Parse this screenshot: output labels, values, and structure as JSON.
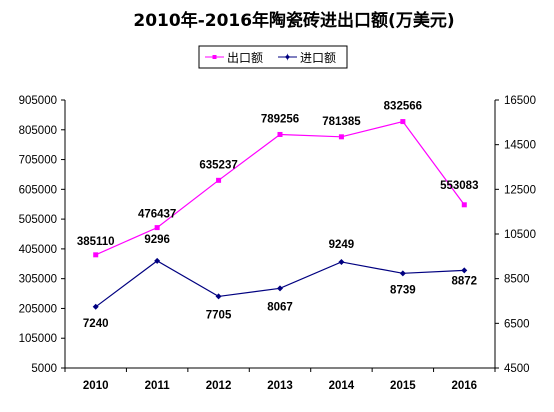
{
  "chart_data": {
    "type": "line",
    "title": "2010年-2016年陶瓷砖进出口额(万美元)",
    "categories": [
      "2010",
      "2011",
      "2012",
      "2013",
      "2014",
      "2015",
      "2016"
    ],
    "y_left": {
      "min": 5000,
      "max": 905000,
      "ticks": [
        "5000",
        "105000",
        "205000",
        "305000",
        "405000",
        "505000",
        "605000",
        "705000",
        "805000",
        "905000"
      ]
    },
    "y_right": {
      "min": 4500,
      "max": 16500,
      "ticks": [
        "4500",
        "6500",
        "8500",
        "10500",
        "12500",
        "14500",
        "16500"
      ]
    },
    "legend_position": "top",
    "grid": false,
    "series": [
      {
        "name": "出口额",
        "axis": "left",
        "color": "#ff00ff",
        "values": [
          385110,
          476437,
          635237,
          789256,
          781385,
          832566,
          553083
        ],
        "labels": [
          "385110",
          "476437",
          "635237",
          "789256",
          "781385",
          "832566",
          "553083"
        ]
      },
      {
        "name": "进口额",
        "axis": "right",
        "color": "#000080",
        "values": [
          7240,
          9296,
          7705,
          8067,
          9249,
          8739,
          8872
        ],
        "labels": [
          "7240",
          "9296",
          "7705",
          "8067",
          "9249",
          "8739",
          "8872"
        ]
      }
    ]
  }
}
